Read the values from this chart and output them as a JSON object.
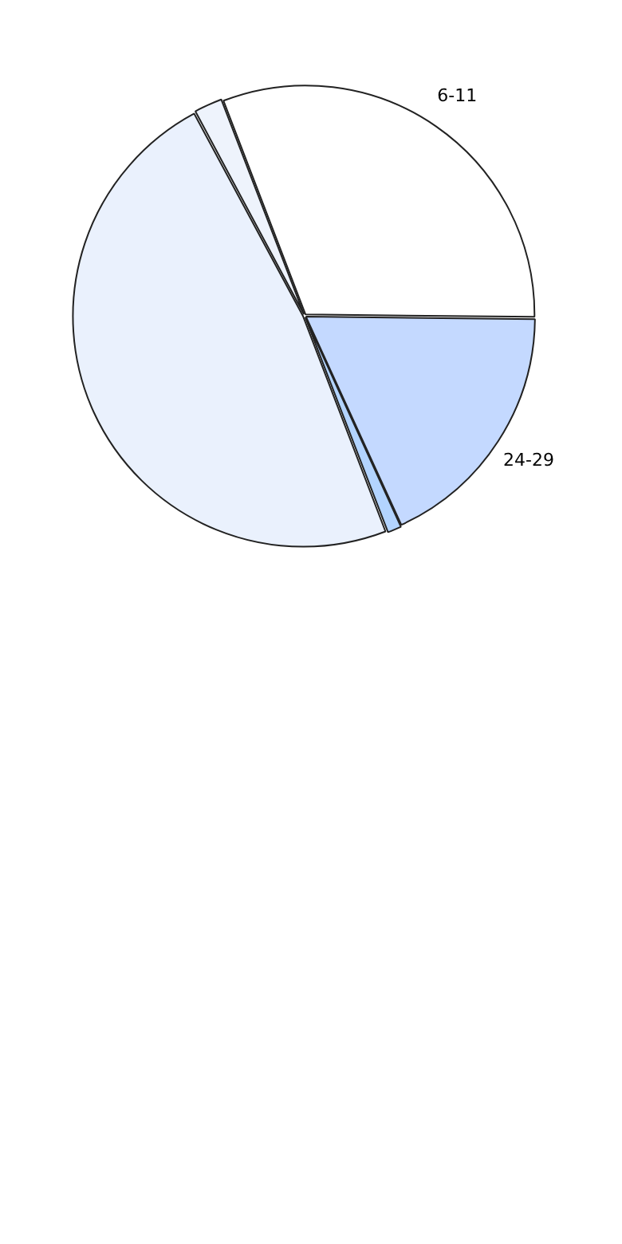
{
  "chart_data": {
    "type": "pie",
    "categories": [
      "6-11",
      "24-29",
      null,
      null,
      null
    ],
    "values": [
      31,
      18,
      1,
      48,
      2
    ],
    "colors": [
      "#ffffff",
      "#c4d9ff",
      "#b3d4ff",
      "#eaf1fd",
      "#eef3fc"
    ]
  }
}
